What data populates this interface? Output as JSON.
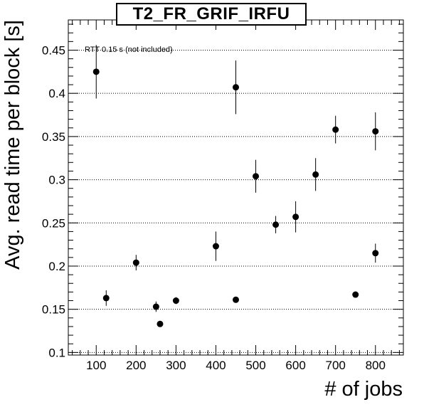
{
  "chart_data": {
    "type": "scatter",
    "title": "T2_FR_GRIF_IRFU",
    "xlabel": "# of jobs",
    "ylabel": "Avg. read time per block [s]",
    "annotation": "RTT 0.15 s (not included)",
    "xlim": [
      30,
      870
    ],
    "ylim": [
      0.097,
      0.485
    ],
    "x_ticks": [
      100,
      200,
      300,
      400,
      500,
      600,
      700,
      800
    ],
    "x_tick_labels": [
      "100",
      "200",
      "300",
      "400",
      "500",
      "600",
      "700",
      "800"
    ],
    "y_ticks": [
      0.1,
      0.15,
      0.2,
      0.25,
      0.3,
      0.35,
      0.4,
      0.45
    ],
    "y_tick_labels": [
      "0.1",
      "0.15",
      "0.2",
      "0.25",
      "0.3",
      "0.35",
      "0.4",
      "0.45"
    ],
    "grid": "horizontal dotted",
    "series": [
      {
        "points": [
          {
            "x": 100,
            "y": 0.425,
            "err": 0.031
          },
          {
            "x": 125,
            "y": 0.163,
            "err": 0.009
          },
          {
            "x": 200,
            "y": 0.204,
            "err": 0.009
          },
          {
            "x": 250,
            "y": 0.153,
            "err": 0.006
          },
          {
            "x": 260,
            "y": 0.133,
            "err": 0.002
          },
          {
            "x": 300,
            "y": 0.16,
            "err": 0.004
          },
          {
            "x": 400,
            "y": 0.223,
            "err": 0.017
          },
          {
            "x": 450,
            "y": 0.407,
            "err": 0.031
          },
          {
            "x": 450,
            "y": 0.161,
            "err": 0.002
          },
          {
            "x": 500,
            "y": 0.304,
            "err": 0.019
          },
          {
            "x": 550,
            "y": 0.248,
            "err": 0.01
          },
          {
            "x": 600,
            "y": 0.257,
            "err": 0.018
          },
          {
            "x": 650,
            "y": 0.306,
            "err": 0.019
          },
          {
            "x": 700,
            "y": 0.358,
            "err": 0.016
          },
          {
            "x": 750,
            "y": 0.167,
            "err": 0.002
          },
          {
            "x": 800,
            "y": 0.356,
            "err": 0.022
          },
          {
            "x": 800,
            "y": 0.215,
            "err": 0.011
          }
        ]
      }
    ]
  }
}
